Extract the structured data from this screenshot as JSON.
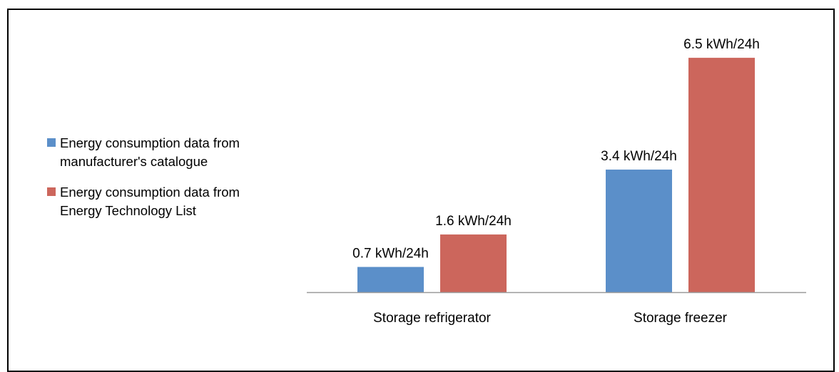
{
  "chart_data": {
    "type": "bar",
    "categories": [
      "Storage refrigerator",
      "Storage freezer"
    ],
    "series": [
      {
        "name": "Energy consumption data from manufacturer's catalogue",
        "color": "#5b8fc9",
        "values": [
          0.7,
          3.4
        ],
        "labels": [
          "0.7 kWh/24h",
          "3.4 kWh/24h"
        ]
      },
      {
        "name": "Energy consumption data from Energy Technology List",
        "color": "#cc665c",
        "values": [
          1.6,
          6.5
        ],
        "labels": [
          "1.6 kWh/24h",
          "6.5 kWh/24h"
        ]
      }
    ],
    "unit": "kWh/24h",
    "ylim": [
      0,
      7
    ],
    "grid": false,
    "legend_position": "left"
  },
  "legend": {
    "items": [
      {
        "label_lines": [
          "Energy consumption data from",
          "manufacturer's catalogue"
        ],
        "color": "#5b8fc9"
      },
      {
        "label_lines": [
          "Energy consumption data from",
          "Energy Technology List"
        ],
        "color": "#cc665c"
      }
    ]
  }
}
